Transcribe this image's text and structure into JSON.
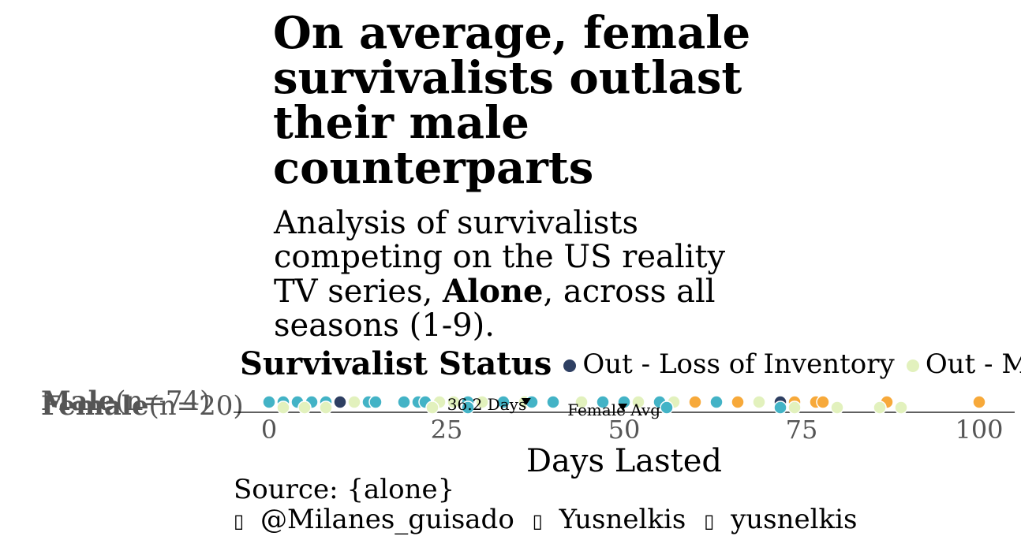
{
  "title": "On average, female survivalists outlast their male counterparts",
  "subtitle_prefix": "Analysis of survivalists competing on the US reality TV series, ",
  "subtitle_bold": "Alone",
  "subtitle_suffix": ", across all seasons (1-9).",
  "caption": {
    "source": "Source: {alone}",
    "handles": [
      {
        "icon": "twitter-icon",
        "text": "@Milanes_guisado"
      },
      {
        "icon": "linkedin-icon",
        "text": "Yusnelkis"
      },
      {
        "icon": "github-icon",
        "text": "yusnelkis"
      }
    ]
  },
  "colors": {
    "Out - Loss of Inventory": "#2e3f62",
    "Out - Medical/Health": "#e2f1bd",
    "Out - Personal/Family": "#43b3c6",
    "Winner": "#f7a93a",
    "avg_marker": "#000000"
  },
  "chart_data": {
    "type": "scatter",
    "xlabel": "Days Lasted",
    "xlim": [
      -5,
      105
    ],
    "xticks": [
      0,
      25,
      50,
      75,
      100
    ],
    "groups": [
      {
        "label_bold": "Male",
        "label_count": "(n=74)"
      },
      {
        "label_bold": "Female",
        "label_count": "(n=20)"
      }
    ],
    "legend": {
      "title": "Survivalist Status",
      "entries": [
        "Out - Loss of Inventory",
        "Out - Medical/Health"
      ]
    },
    "averages": [
      {
        "label": "36.2 Days",
        "value": 36.2,
        "group": "Male"
      },
      {
        "label": "Female Avg",
        "value": 49.8,
        "group": "Female"
      }
    ],
    "points": [
      {
        "group": "Male",
        "x": 0,
        "status": "Out - Personal/Family"
      },
      {
        "group": "Male",
        "x": 2,
        "status": "Out - Personal/Family"
      },
      {
        "group": "Male",
        "x": 4,
        "status": "Out - Personal/Family"
      },
      {
        "group": "Male",
        "x": 6,
        "status": "Out - Personal/Family"
      },
      {
        "group": "Male",
        "x": 8,
        "status": "Out - Personal/Family"
      },
      {
        "group": "Male",
        "x": 10,
        "status": "Out - Loss of Inventory"
      },
      {
        "group": "Male",
        "x": 12,
        "status": "Out - Medical/Health"
      },
      {
        "group": "Male",
        "x": 14,
        "status": "Out - Personal/Family"
      },
      {
        "group": "Male",
        "x": 15,
        "status": "Out - Personal/Family"
      },
      {
        "group": "Male",
        "x": 19,
        "status": "Out - Personal/Family"
      },
      {
        "group": "Male",
        "x": 21,
        "status": "Out - Personal/Family"
      },
      {
        "group": "Male",
        "x": 22,
        "status": "Out - Personal/Family"
      },
      {
        "group": "Male",
        "x": 24,
        "status": "Out - Medical/Health"
      },
      {
        "group": "Male",
        "x": 26,
        "status": "Out - Medical/Health"
      },
      {
        "group": "Male",
        "x": 28,
        "status": "Out - Personal/Family"
      },
      {
        "group": "Male",
        "x": 30,
        "status": "Out - Medical/Health"
      },
      {
        "group": "Male",
        "x": 33,
        "status": "Out - Personal/Family"
      },
      {
        "group": "Male",
        "x": 36,
        "status": "Out - Medical/Health"
      },
      {
        "group": "Male",
        "x": 37,
        "status": "Out - Personal/Family"
      },
      {
        "group": "Male",
        "x": 40,
        "status": "Out - Personal/Family"
      },
      {
        "group": "Male",
        "x": 44,
        "status": "Out - Medical/Health"
      },
      {
        "group": "Male",
        "x": 47,
        "status": "Out - Personal/Family"
      },
      {
        "group": "Male",
        "x": 50,
        "status": "Out - Personal/Family"
      },
      {
        "group": "Male",
        "x": 52,
        "status": "Out - Medical/Health"
      },
      {
        "group": "Male",
        "x": 55,
        "status": "Out - Winner"
      },
      {
        "group": "Male",
        "x": 57,
        "status": "Out - Medical/Health"
      },
      {
        "group": "Male",
        "x": 60,
        "status": "Winner"
      },
      {
        "group": "Male",
        "x": 63,
        "status": "Out - Personal/Family"
      },
      {
        "group": "Male",
        "x": 66,
        "status": "Winner"
      },
      {
        "group": "Male",
        "x": 69,
        "status": "Out - Medical/Health"
      },
      {
        "group": "Male",
        "x": 72,
        "status": "Out - Loss of Inventory"
      },
      {
        "group": "Male",
        "x": 74,
        "status": "Winner"
      },
      {
        "group": "Male",
        "x": 77,
        "status": "Winner"
      },
      {
        "group": "Male",
        "x": 78,
        "status": "Winner"
      },
      {
        "group": "Male",
        "x": 87,
        "status": "Winner"
      },
      {
        "group": "Male",
        "x": 100,
        "status": "Winner"
      },
      {
        "group": "Female",
        "x": 2,
        "status": "Out - Medical/Health"
      },
      {
        "group": "Female",
        "x": 5,
        "status": "Out - Medical/Health"
      },
      {
        "group": "Female",
        "x": 8,
        "status": "Out - Medical/Health"
      },
      {
        "group": "Female",
        "x": 23,
        "status": "Out - Medical/Health"
      },
      {
        "group": "Female",
        "x": 28,
        "status": "Out - Personal/Family"
      },
      {
        "group": "Female",
        "x": 56,
        "status": "Out - Personal/Family"
      },
      {
        "group": "Female",
        "x": 72,
        "status": "Out - Personal/Family"
      },
      {
        "group": "Female",
        "x": 74,
        "status": "Out - Medical/Health"
      },
      {
        "group": "Female",
        "x": 80,
        "status": "Out - Medical/Health"
      },
      {
        "group": "Female",
        "x": 86,
        "status": "Out - Medical/Health"
      },
      {
        "group": "Female",
        "x": 89,
        "status": "Out - Medical/Health"
      }
    ]
  }
}
